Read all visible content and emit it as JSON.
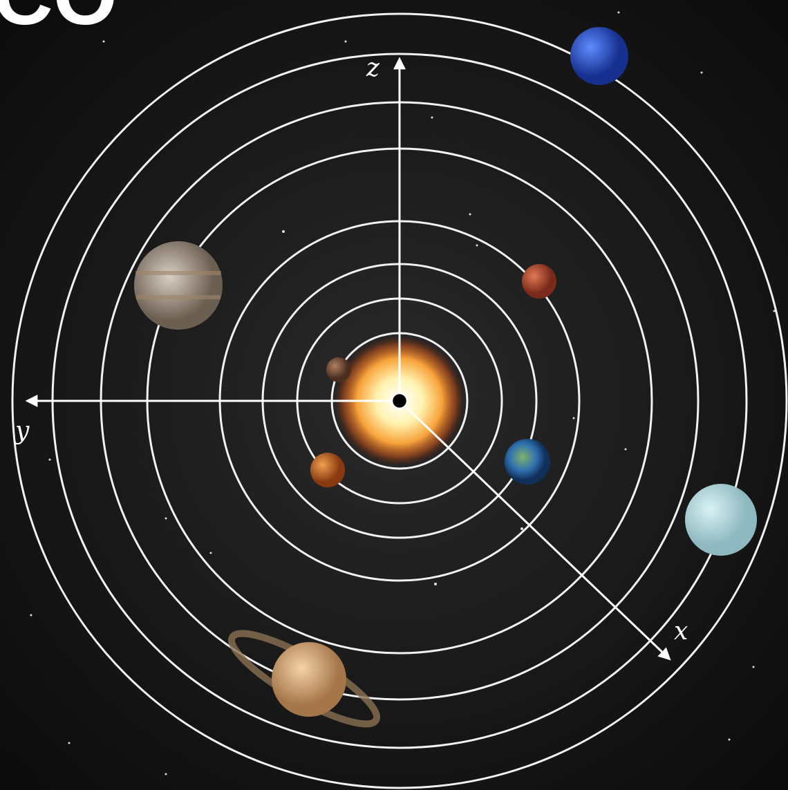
{
  "title": "CO",
  "axes": [
    {
      "label": "z"
    },
    {
      "label": "y"
    },
    {
      "label": "x"
    }
  ]
}
